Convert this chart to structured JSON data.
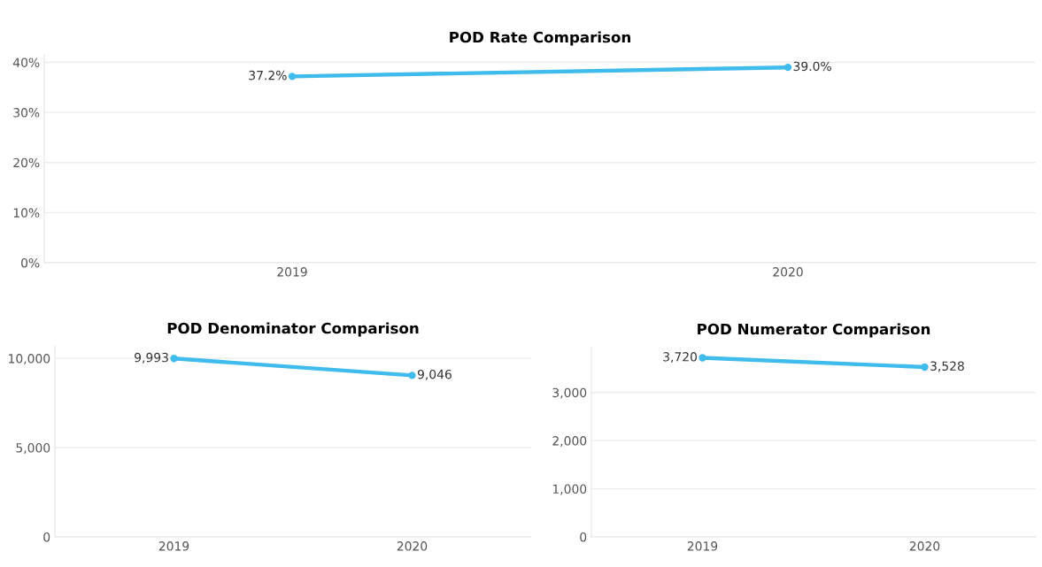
{
  "chart_data": [
    {
      "type": "line",
      "title": "POD Rate Comparison",
      "categories": [
        "2019",
        "2020"
      ],
      "series": [
        {
          "color": "#3fbbec",
          "values": [
            37.2,
            39.0
          ],
          "value_labels": [
            "37.2%",
            "39.0%"
          ]
        }
      ],
      "ylim": [
        0,
        41.5
      ],
      "yticks": [
        {
          "value": 0,
          "label": "0%"
        },
        {
          "value": 10,
          "label": "10%"
        },
        {
          "value": 20,
          "label": "20%"
        },
        {
          "value": 30,
          "label": "30%"
        },
        {
          "value": 40,
          "label": "40%"
        }
      ],
      "grid": "y",
      "marker": "circle",
      "line_style": "solid",
      "legend": false
    },
    {
      "type": "line",
      "title": "POD Denominator Comparison",
      "categories": [
        "2019",
        "2020"
      ],
      "series": [
        {
          "color": "#3fbbec",
          "values": [
            9993,
            9046
          ],
          "value_labels": [
            "9,993",
            "9,046"
          ]
        }
      ],
      "ylim": [
        0,
        10700
      ],
      "yticks": [
        {
          "value": 0,
          "label": "0"
        },
        {
          "value": 5000,
          "label": "5,000"
        },
        {
          "value": 10000,
          "label": "10,000"
        }
      ],
      "grid": "y",
      "marker": "circle",
      "line_style": "solid",
      "legend": false
    },
    {
      "type": "line",
      "title": "POD Numerator Comparison",
      "categories": [
        "2019",
        "2020"
      ],
      "series": [
        {
          "color": "#3fbbec",
          "values": [
            3720,
            3528
          ],
          "value_labels": [
            "3,720",
            "3,528"
          ]
        }
      ],
      "ylim": [
        0,
        3950
      ],
      "yticks": [
        {
          "value": 0,
          "label": "0"
        },
        {
          "value": 1000,
          "label": "1,000"
        },
        {
          "value": 2000,
          "label": "2,000"
        },
        {
          "value": 3000,
          "label": "3,000"
        }
      ],
      "grid": "y",
      "marker": "circle",
      "line_style": "solid",
      "legend": false
    }
  ]
}
